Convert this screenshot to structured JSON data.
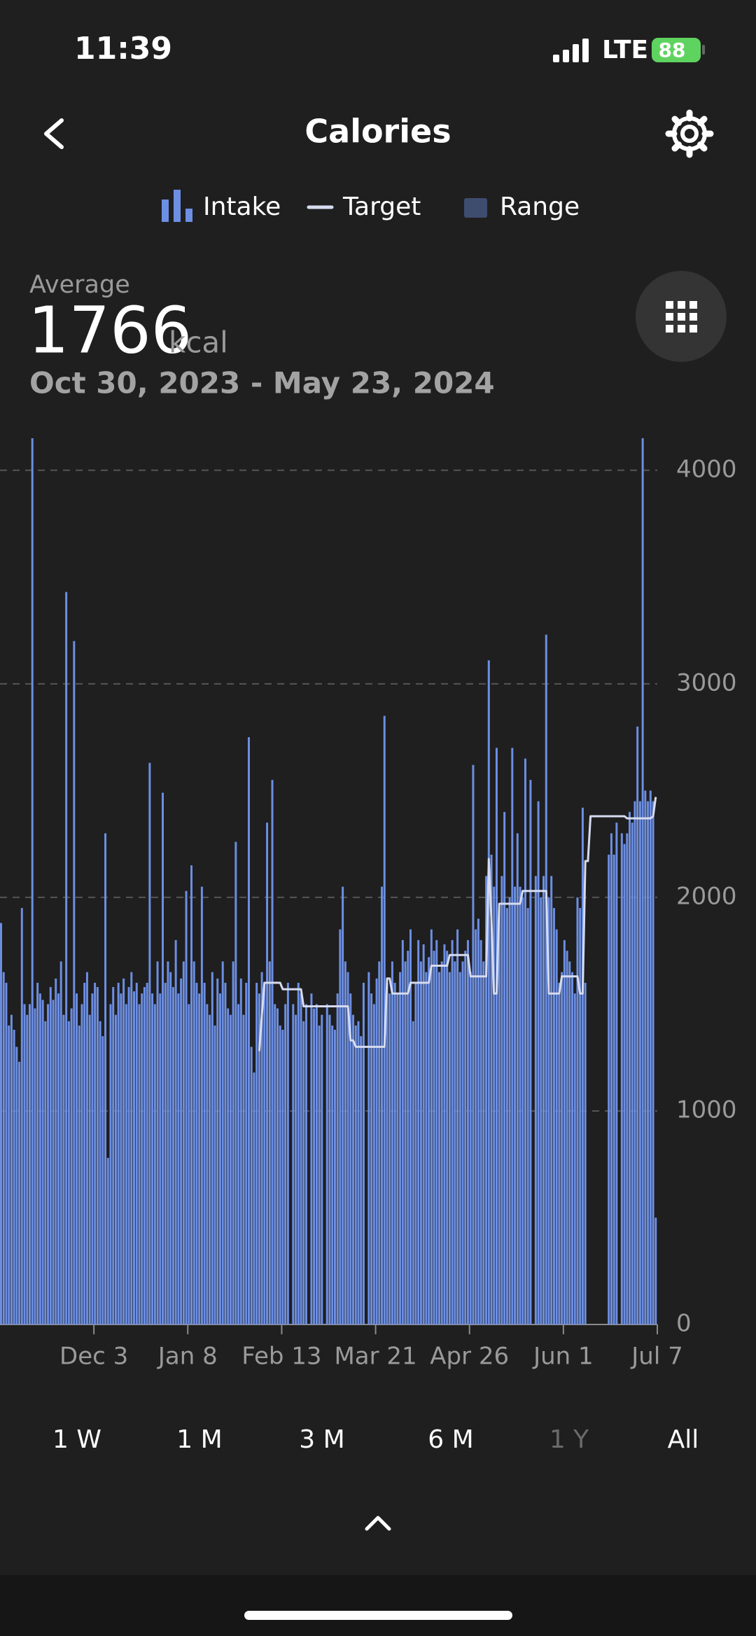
{
  "status_bar": {
    "time": "11:39",
    "network": "LTE",
    "battery": "88"
  },
  "header": {
    "title": "Calories"
  },
  "summary": {
    "label": "Average",
    "value": "1766",
    "unit": "kcal",
    "date_range": "Oct 30, 2023 - May 23, 2024"
  },
  "range_tabs": [
    "1 W",
    "1 M",
    "3 M",
    "6 M",
    "1 Y",
    "All"
  ],
  "active_tab_index": 4,
  "chart_data": {
    "type": "bar",
    "range_legend": {
      "name": "Range",
      "color": "#3e4c6e"
    },
    "categories": [
      null,
      null,
      null,
      null,
      null,
      null,
      null,
      null,
      null,
      null,
      null,
      null,
      null,
      null,
      null,
      null,
      null,
      null,
      null,
      null,
      null,
      null,
      null,
      null,
      null,
      null,
      null,
      null,
      null,
      null,
      null,
      null,
      null,
      null,
      null,
      null,
      "Dec 3",
      null,
      null,
      null,
      null,
      null,
      null,
      null,
      null,
      null,
      null,
      null,
      null,
      null,
      null,
      null,
      null,
      null,
      null,
      null,
      null,
      null,
      null,
      null,
      null,
      null,
      null,
      null,
      null,
      null,
      null,
      null,
      null,
      null,
      null,
      null,
      "Jan 8",
      null,
      null,
      null,
      null,
      null,
      null,
      null,
      null,
      null,
      null,
      null,
      null,
      null,
      null,
      null,
      null,
      null,
      null,
      null,
      null,
      null,
      null,
      null,
      null,
      null,
      null,
      null,
      null,
      null,
      null,
      null,
      null,
      null,
      null,
      null,
      "Feb 13",
      null,
      null,
      null,
      null,
      null,
      null,
      null,
      null,
      null,
      null,
      null,
      null,
      null,
      null,
      null,
      null,
      null,
      null,
      null,
      null,
      null,
      null,
      null,
      null,
      null,
      null,
      null,
      null,
      null,
      null,
      null,
      null,
      null,
      null,
      null,
      "Mar 21",
      null,
      null,
      null,
      null,
      null,
      null,
      null,
      null,
      null,
      null,
      null,
      null,
      null,
      null,
      null,
      null,
      null,
      null,
      null,
      null,
      null,
      null,
      null,
      null,
      null,
      null,
      null,
      null,
      null,
      null,
      null,
      null,
      null,
      null,
      null,
      "Apr 26",
      null,
      null,
      null,
      null,
      null,
      null,
      null,
      null,
      null,
      null,
      null,
      null,
      null,
      null,
      null,
      null,
      null,
      null,
      null,
      null,
      null,
      null,
      null,
      null,
      null,
      null,
      null,
      null,
      null,
      null,
      null,
      null,
      null,
      null,
      null,
      "Jun 1",
      null,
      null,
      null,
      null,
      null,
      null,
      null,
      null,
      null,
      null,
      null,
      null,
      null,
      null,
      null,
      null,
      null,
      null,
      null,
      null,
      null,
      null,
      null,
      null,
      null,
      null,
      null,
      null,
      null,
      null,
      null,
      null,
      null,
      null,
      null,
      "Jul 7"
    ],
    "series": [
      {
        "name": "Intake",
        "color": "#6d8fe3",
        "values": [
          1880,
          1650,
          1600,
          1400,
          1450,
          1380,
          1300,
          1230,
          1950,
          1500,
          1450,
          1500,
          4150,
          1480,
          1600,
          1550,
          1520,
          1420,
          1500,
          1580,
          1520,
          1620,
          1550,
          1700,
          1450,
          3430,
          1420,
          1480,
          3200,
          1550,
          1400,
          1500,
          1600,
          1650,
          1450,
          1550,
          1600,
          1580,
          1420,
          1350,
          2300,
          780,
          1500,
          1580,
          1450,
          1600,
          1550,
          1620,
          1500,
          1580,
          1650,
          1560,
          1600,
          1500,
          1550,
          1580,
          1600,
          2630,
          1550,
          1500,
          1700,
          1550,
          2490,
          1600,
          1700,
          1650,
          1580,
          1800,
          1550,
          1620,
          1700,
          2030,
          1500,
          2150,
          1700,
          1600,
          1550,
          2050,
          1600,
          1500,
          1450,
          1650,
          1400,
          1620,
          1550,
          1700,
          1600,
          1480,
          1450,
          1700,
          2260,
          1500,
          1620,
          1450,
          1600,
          2750,
          1300,
          1180,
          1600,
          1550,
          1650,
          1600,
          2350,
          1700,
          2550,
          1500,
          1480,
          1400,
          1380,
          1500,
          1600,
          0,
          1500,
          1450,
          1600,
          1550,
          1420,
          1500,
          0,
          1550,
          1480,
          1500,
          1400,
          1450,
          0,
          1500,
          1450,
          1400,
          1380,
          1550,
          1850,
          2050,
          1700,
          1650,
          1550,
          1450,
          1400,
          1420,
          1350,
          1600,
          0,
          1650,
          1550,
          1500,
          1620,
          1700,
          2050,
          2850,
          1600,
          1550,
          1700,
          1600,
          1550,
          1650,
          1800,
          1700,
          1750,
          1850,
          1420,
          1600,
          1800,
          1700,
          1780,
          1650,
          1720,
          1850,
          1750,
          1800,
          1650,
          1700,
          1780,
          1750,
          1650,
          1800,
          1700,
          1850,
          1650,
          1700,
          1750,
          1800,
          1650,
          2620,
          1850,
          1900,
          1800,
          1700,
          2100,
          3110,
          2200,
          2050,
          2700,
          1950,
          2100,
          2400,
          1950,
          2000,
          2700,
          2050,
          2300,
          2050,
          2000,
          2650,
          1950,
          2550,
          0,
          2100,
          2450,
          2000,
          2100,
          3230,
          2000,
          2100,
          1950,
          1850,
          1600,
          1650,
          1800,
          1750,
          1700,
          1650,
          1550,
          2000,
          1950,
          2420,
          1600,
          0,
          0,
          0,
          0,
          0,
          0,
          0,
          0,
          2200,
          2300,
          2200,
          2350,
          0,
          2300,
          2250,
          2300,
          2400,
          2350,
          2450,
          2800,
          2450,
          4150,
          2500,
          2450,
          2500,
          2450,
          500,
          null
        ]
      },
      {
        "name": "Target",
        "type": "line",
        "color": "#d6dbef",
        "values": [
          null,
          null,
          null,
          null,
          null,
          null,
          null,
          null,
          null,
          null,
          null,
          null,
          null,
          null,
          null,
          null,
          null,
          null,
          null,
          null,
          null,
          null,
          null,
          null,
          null,
          null,
          null,
          null,
          null,
          null,
          null,
          null,
          null,
          null,
          null,
          null,
          null,
          null,
          null,
          null,
          null,
          null,
          null,
          null,
          null,
          null,
          null,
          null,
          null,
          null,
          null,
          null,
          null,
          null,
          null,
          null,
          null,
          null,
          null,
          null,
          null,
          null,
          null,
          null,
          null,
          null,
          null,
          null,
          null,
          null,
          null,
          null,
          null,
          null,
          null,
          null,
          null,
          null,
          null,
          null,
          null,
          null,
          null,
          null,
          null,
          null,
          null,
          null,
          null,
          null,
          null,
          null,
          null,
          null,
          null,
          null,
          null,
          null,
          null,
          1280,
          1450,
          1600,
          1600,
          1600,
          1600,
          1600,
          1600,
          1600,
          1570,
          1570,
          1570,
          1570,
          1570,
          1570,
          1570,
          1570,
          1490,
          1490,
          1490,
          1490,
          1490,
          1490,
          1490,
          1490,
          1490,
          1490,
          1490,
          1490,
          1490,
          1490,
          1490,
          1490,
          1490,
          1490,
          1330,
          1330,
          1300,
          1300,
          1300,
          1300,
          1300,
          1300,
          1300,
          1300,
          1300,
          1300,
          1300,
          1300,
          1620,
          1620,
          1550,
          1550,
          1550,
          1550,
          1550,
          1550,
          1550,
          1600,
          1600,
          1600,
          1600,
          1600,
          1600,
          1600,
          1600,
          1680,
          1680,
          1680,
          1680,
          1680,
          1680,
          1680,
          1730,
          1730,
          1730,
          1730,
          1730,
          1730,
          1730,
          1730,
          1630,
          1630,
          1630,
          1630,
          1630,
          1630,
          1630,
          2180,
          1900,
          1550,
          1550,
          1970,
          1970,
          1970,
          1970,
          1970,
          1970,
          1970,
          1970,
          1970,
          2030,
          2030,
          2030,
          2030,
          2030,
          2030,
          2030,
          2030,
          2030,
          2030,
          1550,
          1550,
          1550,
          1550,
          1550,
          1630,
          1630,
          1630,
          1630,
          1630,
          1630,
          1630,
          1550,
          1550,
          2170,
          2170,
          2380,
          2380,
          2380,
          2380,
          2380,
          2380,
          2380,
          2380,
          2380,
          2380,
          2380,
          2380,
          2380,
          2380,
          2370,
          2370,
          2370,
          2370,
          2370,
          2370,
          2370,
          2370,
          2370,
          2370,
          2380,
          2470,
          null
        ]
      }
    ],
    "ylim": [
      0,
      4150
    ],
    "yticks": [
      0,
      1000,
      2000,
      3000,
      4000
    ],
    "grid": true
  }
}
